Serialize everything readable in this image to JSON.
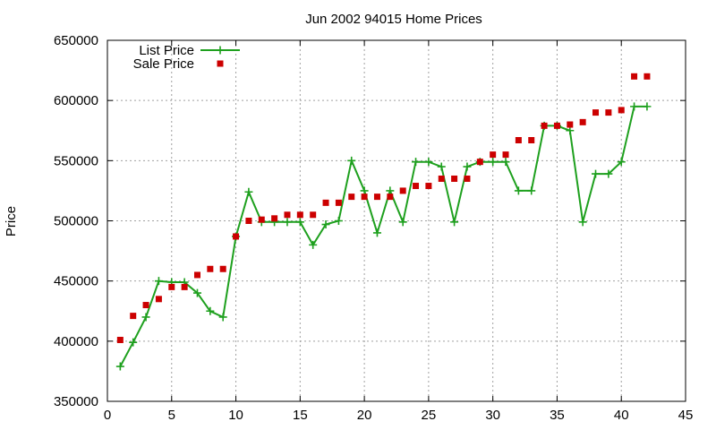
{
  "chart_data": {
    "type": "line",
    "title": "Jun 2002 94015 Home Prices",
    "xlabel": "",
    "ylabel": "Price",
    "xlim": [
      0,
      45
    ],
    "ylim": [
      350000,
      650000
    ],
    "x_ticks": [
      "0",
      "5",
      "10",
      "15",
      "20",
      "25",
      "30",
      "35",
      "40",
      "45"
    ],
    "y_ticks": [
      "350000",
      "400000",
      "450000",
      "500000",
      "550000",
      "600000",
      "650000"
    ],
    "grid": true,
    "legend_position": "top-left",
    "x": [
      1,
      2,
      3,
      4,
      5,
      6,
      7,
      8,
      9,
      10,
      11,
      12,
      13,
      14,
      15,
      16,
      17,
      18,
      19,
      20,
      21,
      22,
      23,
      24,
      25,
      26,
      27,
      28,
      29,
      30,
      31,
      32,
      33,
      34,
      35,
      36,
      37,
      38,
      39,
      40,
      41,
      42
    ],
    "series": [
      {
        "name": "List Price",
        "style": "line+cross",
        "color": "#1ea01e",
        "values": [
          379000,
          399000,
          420000,
          450000,
          449000,
          449000,
          440000,
          425000,
          420000,
          487000,
          524000,
          499000,
          499000,
          499000,
          499000,
          480000,
          497000,
          500000,
          550000,
          525000,
          490000,
          525000,
          499000,
          549000,
          549000,
          545000,
          499000,
          545000,
          549000,
          549000,
          549000,
          525000,
          525000,
          579000,
          579000,
          575000,
          499000,
          539000,
          539000,
          549000,
          595000,
          595000
        ]
      },
      {
        "name": "Sale Price",
        "style": "square",
        "color": "#cc0000",
        "values": [
          401000,
          421000,
          430000,
          435000,
          445000,
          445000,
          455000,
          460000,
          460000,
          487000,
          500000,
          501000,
          502000,
          505000,
          505000,
          505000,
          515000,
          515000,
          520000,
          520000,
          520000,
          520000,
          525000,
          529000,
          529000,
          535000,
          535000,
          535000,
          549000,
          555000,
          555000,
          567000,
          567000,
          579000,
          579000,
          580000,
          582000,
          590000,
          590000,
          592000,
          620000,
          620000
        ]
      }
    ]
  }
}
